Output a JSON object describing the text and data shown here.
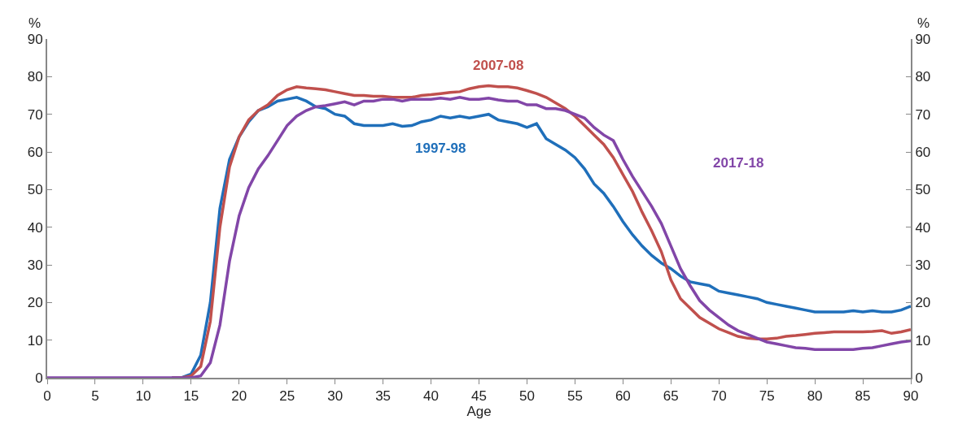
{
  "chart_data": {
    "type": "line",
    "xlabel": "Age",
    "ylabel": "%",
    "y2label": "%",
    "x": [
      0,
      1,
      2,
      3,
      4,
      5,
      6,
      7,
      8,
      9,
      10,
      11,
      12,
      13,
      14,
      15,
      16,
      17,
      18,
      19,
      20,
      21,
      22,
      23,
      24,
      25,
      26,
      27,
      28,
      29,
      30,
      31,
      32,
      33,
      34,
      35,
      36,
      37,
      38,
      39,
      40,
      41,
      42,
      43,
      44,
      45,
      46,
      47,
      48,
      49,
      50,
      51,
      52,
      53,
      54,
      55,
      56,
      57,
      58,
      59,
      60,
      61,
      62,
      63,
      64,
      65,
      66,
      67,
      68,
      69,
      70,
      71,
      72,
      73,
      74,
      75,
      76,
      77,
      78,
      79,
      80,
      81,
      82,
      83,
      84,
      85,
      86,
      87,
      88,
      89,
      90
    ],
    "series": [
      {
        "name": "1997-98",
        "color": "#1f6fba",
        "values": [
          null,
          null,
          null,
          null,
          null,
          null,
          null,
          null,
          null,
          null,
          null,
          null,
          null,
          0,
          0,
          1,
          6,
          20,
          45,
          58,
          64,
          68,
          71,
          72,
          73.5,
          74,
          74.5,
          73.5,
          72,
          71.5,
          70,
          69.5,
          67.5,
          67,
          67,
          67,
          67.5,
          66.8,
          67,
          68,
          68.5,
          69.5,
          69,
          69.5,
          69,
          69.5,
          70,
          68.5,
          68,
          67.5,
          66.5,
          67.5,
          63.5,
          62,
          60.5,
          58.5,
          55.5,
          51.5,
          49,
          45.5,
          41.5,
          38,
          35,
          32.5,
          30.5,
          29,
          27,
          25.5,
          25,
          24.5,
          23,
          22.5,
          22,
          21.5,
          21,
          20,
          19.5,
          19,
          18.5,
          18,
          17.5,
          17.5,
          17.5,
          17.5,
          17.8,
          17.5,
          17.8,
          17.5,
          17.5,
          18,
          19
        ]
      },
      {
        "name": "2007-08",
        "color": "#c0504d",
        "values": [
          null,
          null,
          null,
          null,
          null,
          null,
          null,
          null,
          null,
          null,
          null,
          null,
          null,
          0,
          0,
          0.5,
          3,
          15,
          40,
          56,
          64,
          68.5,
          71,
          72.5,
          75,
          76.5,
          77.3,
          77,
          76.8,
          76.5,
          76,
          75.5,
          75,
          75,
          74.8,
          74.8,
          74.5,
          74.5,
          74.5,
          75,
          75.2,
          75.5,
          75.8,
          76,
          76.8,
          77.3,
          77.6,
          77.3,
          77.3,
          77,
          76.3,
          75.5,
          74.5,
          73,
          71.5,
          69.5,
          67,
          64.5,
          62,
          58.5,
          54,
          49.5,
          44,
          39,
          33.5,
          26,
          21,
          18.5,
          16,
          14.5,
          13,
          12,
          11,
          10.5,
          10.3,
          10.3,
          10.5,
          11,
          11.2,
          11.5,
          11.8,
          12,
          12.2,
          12.2,
          12.2,
          12.2,
          12.3,
          12.5,
          11.8,
          12.2,
          12.8
        ]
      },
      {
        "name": "2017-18",
        "color": "#8246a8",
        "values": [
          0,
          0,
          0,
          0,
          0,
          0,
          0,
          0,
          0,
          0,
          0,
          0,
          0,
          0,
          0,
          0,
          0.5,
          4,
          14,
          31,
          43,
          50.5,
          55.5,
          59,
          63,
          67,
          69.5,
          71,
          72,
          72.3,
          72.8,
          73.3,
          72.5,
          73.5,
          73.5,
          74,
          74,
          73.5,
          74,
          74,
          74,
          74.3,
          74,
          74.5,
          74,
          74,
          74.3,
          73.8,
          73.5,
          73.5,
          72.5,
          72.5,
          71.5,
          71.5,
          71,
          70,
          69,
          66.5,
          64.5,
          63,
          58,
          53.5,
          49.5,
          45.5,
          41,
          35,
          29,
          24.5,
          20.5,
          18,
          16,
          14,
          12.5,
          11.5,
          10.5,
          9.5,
          9,
          8.5,
          8,
          7.8,
          7.5,
          7.5,
          7.5,
          7.5,
          7.5,
          7.8,
          8,
          8.5,
          9,
          9.5,
          9.8
        ]
      }
    ],
    "xlim": [
      0,
      90
    ],
    "xticks": [
      0,
      5,
      10,
      15,
      20,
      25,
      30,
      35,
      40,
      45,
      50,
      55,
      60,
      65,
      70,
      75,
      80,
      85,
      90
    ],
    "ylim": [
      0,
      90
    ],
    "yticks": [
      0,
      10,
      20,
      30,
      40,
      50,
      60,
      70,
      80,
      90
    ],
    "y2lim": [
      0,
      90
    ],
    "y2ticks": [
      0,
      10,
      20,
      30,
      40,
      50,
      60,
      70,
      80,
      90
    ],
    "legend": false,
    "line_style": "solid",
    "marker": "none"
  }
}
